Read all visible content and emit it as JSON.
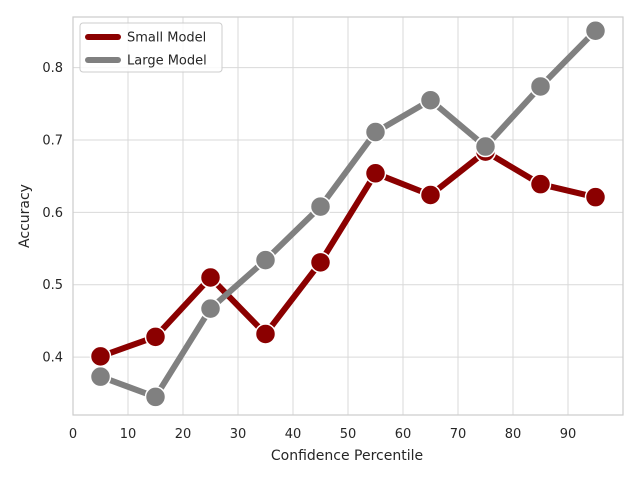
{
  "chart_data": {
    "type": "line",
    "title": "",
    "xlabel": "Confidence Percentile",
    "ylabel": "Accuracy",
    "x": [
      5,
      15,
      25,
      35,
      45,
      55,
      65,
      75,
      85,
      95
    ],
    "xlim": [
      0,
      100
    ],
    "ylim": [
      0.32,
      0.87
    ],
    "xticks": [
      0,
      10,
      20,
      30,
      40,
      50,
      60,
      70,
      80,
      90
    ],
    "yticks": [
      0.4,
      0.5,
      0.6,
      0.7,
      0.8
    ],
    "xtick_labels": [
      "0",
      "10",
      "20",
      "30",
      "40",
      "50",
      "60",
      "70",
      "80",
      "90"
    ],
    "ytick_labels": [
      "0.4",
      "0.5",
      "0.6",
      "0.7",
      "0.8"
    ],
    "grid": true,
    "legend_position": "top-left",
    "series": [
      {
        "name": "Small Model",
        "color": "#8b0000",
        "values": [
          0.401,
          0.428,
          0.51,
          0.432,
          0.531,
          0.654,
          0.624,
          0.684,
          0.639,
          0.621
        ]
      },
      {
        "name": "Large Model",
        "color": "#808080",
        "values": [
          0.373,
          0.345,
          0.467,
          0.534,
          0.608,
          0.711,
          0.755,
          0.691,
          0.774,
          0.851
        ]
      }
    ]
  }
}
